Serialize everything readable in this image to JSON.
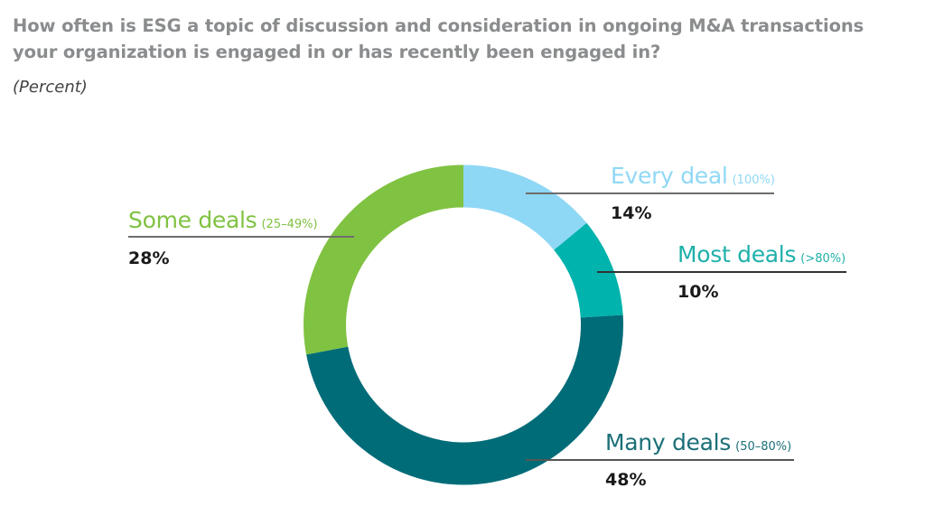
{
  "header": {
    "title": "How often is ESG a topic of discussion and consideration in ongoing M&A transactions your organization is engaged in or has recently been engaged in?",
    "subtitle": "(Percent)"
  },
  "colors": {
    "every_deal": "#8fd8f5",
    "most_deals": "#00b3ad",
    "many_deals": "#006c78",
    "some_deals": "#80c242",
    "title": "#8a8c8e"
  },
  "segments": [
    {
      "key": "every_deal",
      "name": "Every deal",
      "range": "(100%)",
      "value_label": "14%",
      "value": 14,
      "color": "#8fd8f5"
    },
    {
      "key": "most_deals",
      "name": "Most deals",
      "range": "(>80%)",
      "value_label": "10%",
      "value": 10,
      "color": "#00b3ad"
    },
    {
      "key": "many_deals",
      "name": "Many deals",
      "range": "(50–80%)",
      "value_label": "48%",
      "value": 48,
      "color": "#006c78"
    },
    {
      "key": "some_deals",
      "name": "Some deals",
      "range": "(25–49%)",
      "value_label": "28%",
      "value": 28,
      "color": "#80c242"
    }
  ],
  "chart_data": {
    "type": "pie",
    "subtype": "donut",
    "title": "How often is ESG a topic of discussion and consideration in ongoing M&A transactions your organization is engaged in or has recently been engaged in?",
    "subtitle": "(Percent)",
    "categories": [
      "Every deal (100%)",
      "Most deals (>80%)",
      "Many deals (50–80%)",
      "Some deals (25–49%)"
    ],
    "values": [
      14,
      10,
      48,
      28
    ],
    "colors": [
      "#8fd8f5",
      "#00b3ad",
      "#006c78",
      "#80c242"
    ],
    "start_angle": "12 o'clock",
    "direction": "clockwise",
    "legend": "callout labels with leader lines"
  }
}
